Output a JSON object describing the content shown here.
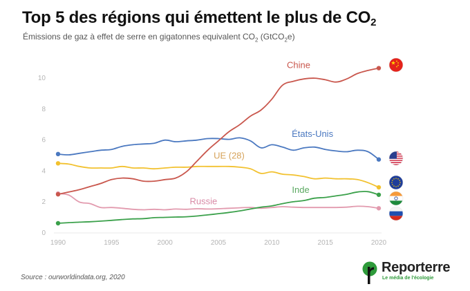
{
  "header": {
    "title_main": "Top 5 des régions qui émettent le plus de CO",
    "title_sub": "2",
    "subtitle_pre": "Émissions de gaz à effet de serre en gigatonnes equivalent CO",
    "subtitle_sub1": "2",
    "subtitle_mid": " (GtCO",
    "subtitle_sub2": "2",
    "subtitle_post": "e)"
  },
  "footer": {
    "source": "Source : ourworldindata.org, 2020",
    "brand_name": "Reporterre",
    "brand_tagline": "Le média de l'écologie",
    "brand_color": "#2e9a3a"
  },
  "chart_data": {
    "type": "line",
    "title": "Top 5 des régions qui émettent le plus de CO2",
    "subtitle": "Émissions de gaz à effet de serre en gigatonnes equivalent CO2 (GtCO2e)",
    "xlabel": "",
    "ylabel": "",
    "xlim": [
      1990,
      2020
    ],
    "ylim": [
      0,
      11
    ],
    "x_ticks": [
      1990,
      1995,
      2000,
      2005,
      2010,
      2015,
      2020
    ],
    "y_ticks": [
      0,
      2,
      4,
      6,
      8,
      10
    ],
    "grid": false,
    "legend": "inline-labels",
    "x": [
      1990,
      1991,
      1992,
      1993,
      1994,
      1995,
      1996,
      1997,
      1998,
      1999,
      2000,
      2001,
      2002,
      2003,
      2004,
      2005,
      2006,
      2007,
      2008,
      2009,
      2010,
      2011,
      2012,
      2013,
      2014,
      2015,
      2016,
      2017,
      2018,
      2019,
      2020
    ],
    "series": [
      {
        "name": "Chine",
        "color": "#c9574d",
        "flag": "china-flag",
        "values": [
          2.45,
          2.6,
          2.75,
          2.95,
          3.15,
          3.4,
          3.5,
          3.45,
          3.3,
          3.3,
          3.4,
          3.5,
          3.9,
          4.6,
          5.3,
          5.9,
          6.5,
          6.95,
          7.5,
          7.9,
          8.6,
          9.5,
          9.75,
          9.9,
          9.95,
          9.85,
          9.7,
          9.9,
          10.25,
          10.45,
          10.6
        ]
      },
      {
        "name": "États-Unis",
        "color": "#4a78c0",
        "flag": "usa-flag",
        "values": [
          5.05,
          5.0,
          5.1,
          5.2,
          5.3,
          5.35,
          5.55,
          5.65,
          5.7,
          5.75,
          5.95,
          5.85,
          5.9,
          5.95,
          6.05,
          6.05,
          6.0,
          6.1,
          5.9,
          5.45,
          5.65,
          5.5,
          5.3,
          5.45,
          5.5,
          5.35,
          5.25,
          5.2,
          5.3,
          5.2,
          4.7
        ]
      },
      {
        "name": "UE (28)",
        "color": "#f2c12e",
        "label_color": "#d6a35a",
        "flag": "eu-flag",
        "values": [
          4.45,
          4.4,
          4.25,
          4.15,
          4.15,
          4.15,
          4.25,
          4.15,
          4.15,
          4.1,
          4.15,
          4.2,
          4.2,
          4.25,
          4.25,
          4.25,
          4.25,
          4.2,
          4.1,
          3.8,
          3.9,
          3.75,
          3.7,
          3.6,
          3.45,
          3.5,
          3.45,
          3.45,
          3.4,
          3.2,
          2.9
        ]
      },
      {
        "name": "Inde",
        "color": "#3aa04a",
        "label_color": "#5aa860",
        "flag": "india-flag",
        "values": [
          0.58,
          0.62,
          0.65,
          0.68,
          0.72,
          0.77,
          0.82,
          0.86,
          0.88,
          0.94,
          0.96,
          0.98,
          1.0,
          1.05,
          1.12,
          1.2,
          1.28,
          1.38,
          1.5,
          1.62,
          1.7,
          1.85,
          1.97,
          2.05,
          2.2,
          2.25,
          2.35,
          2.45,
          2.6,
          2.62,
          2.42
        ]
      },
      {
        "name": "Russie",
        "color": "#e29aae",
        "label_color": "#d98aa6",
        "flag": "russia-flag",
        "values": [
          2.5,
          2.4,
          1.95,
          1.85,
          1.6,
          1.6,
          1.55,
          1.48,
          1.45,
          1.48,
          1.45,
          1.5,
          1.48,
          1.52,
          1.5,
          1.52,
          1.55,
          1.58,
          1.6,
          1.55,
          1.6,
          1.65,
          1.62,
          1.6,
          1.6,
          1.6,
          1.6,
          1.62,
          1.68,
          1.65,
          1.55
        ]
      }
    ]
  }
}
